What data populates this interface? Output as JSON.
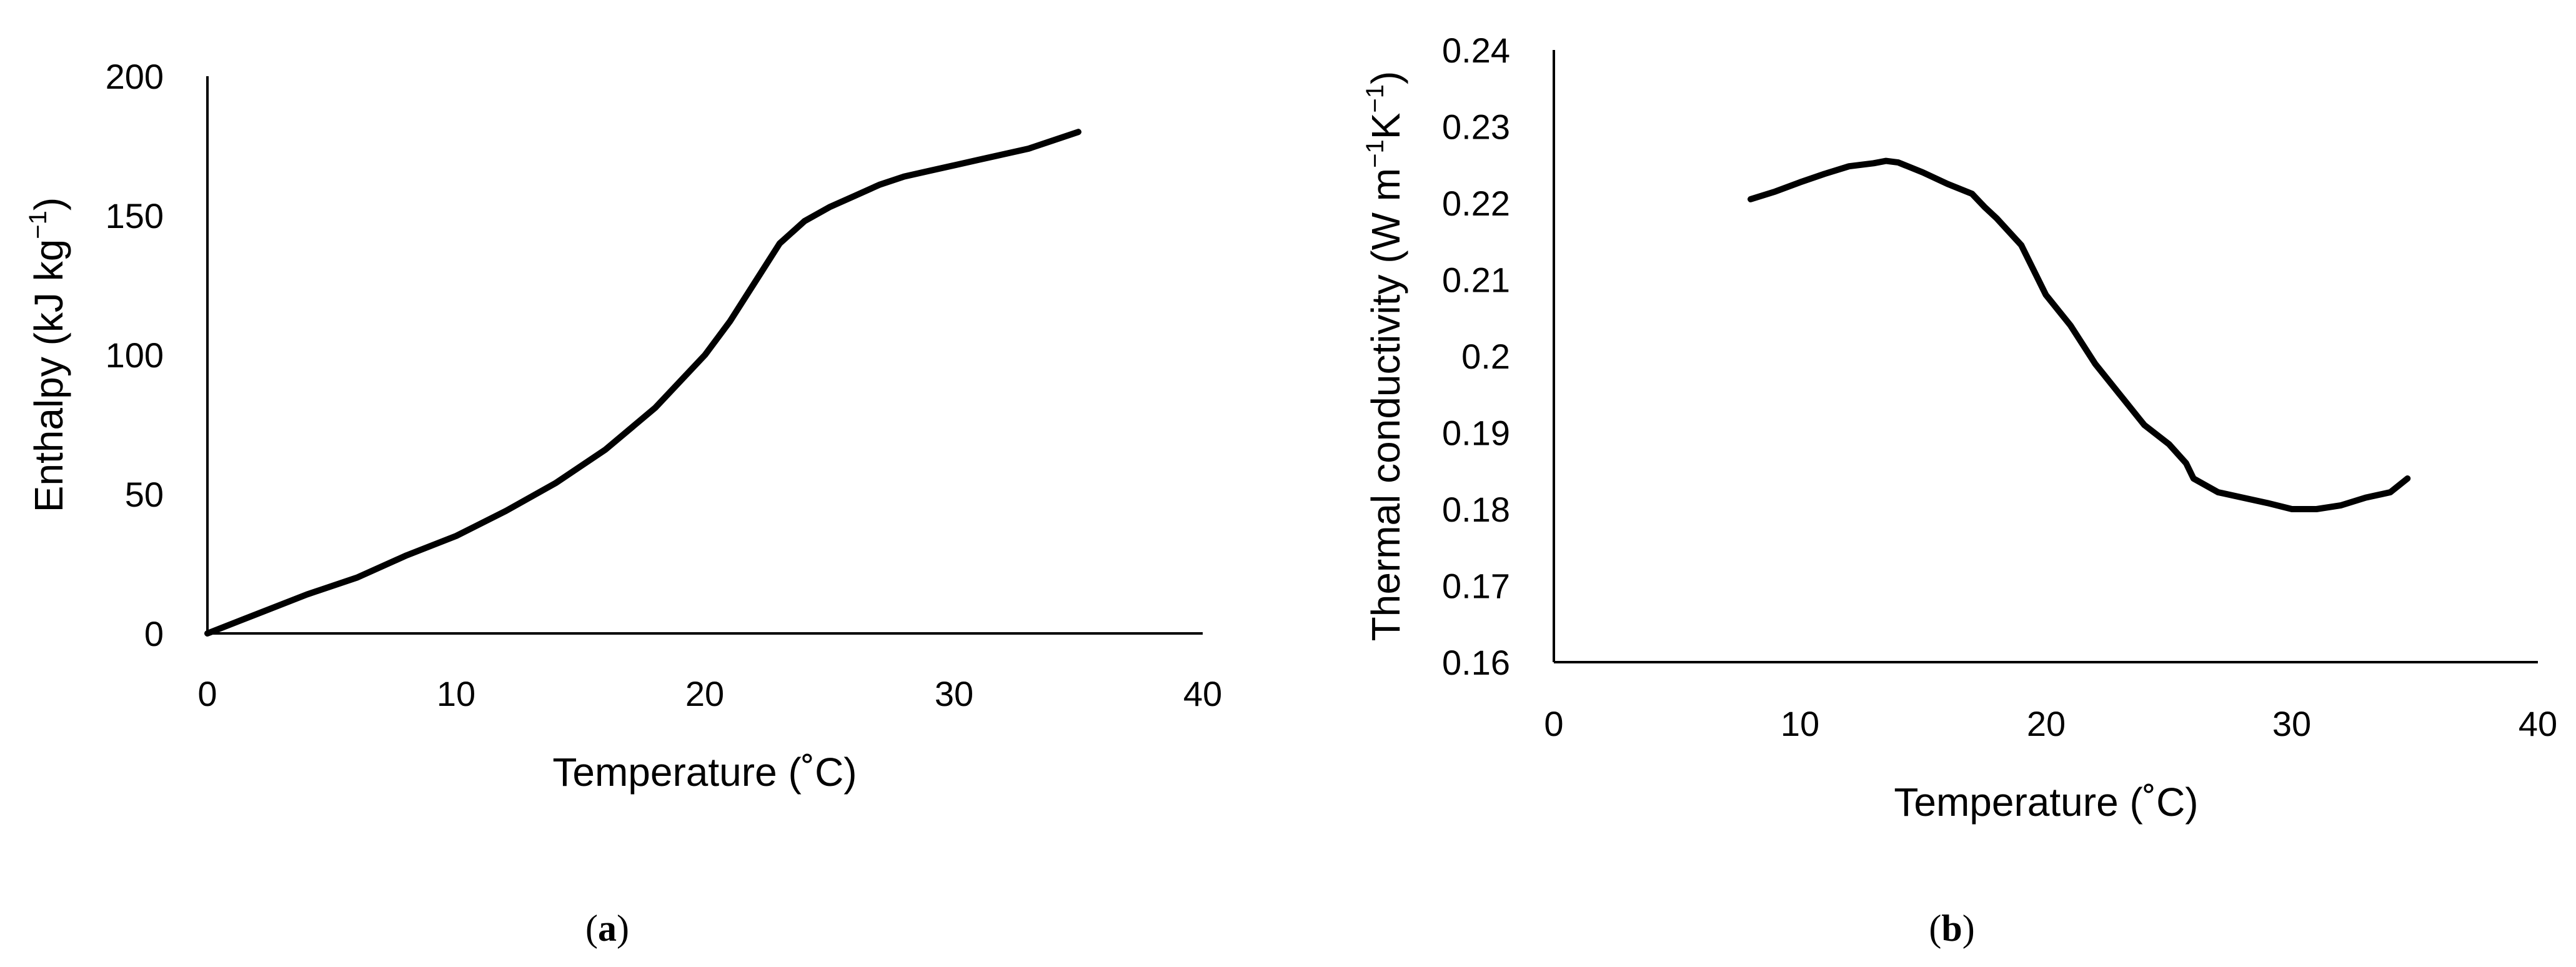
{
  "colors": {
    "line": "#000000",
    "axis": "#000000",
    "background": "#ffffff"
  },
  "chart_data": [
    {
      "type": "line",
      "panel_label": {
        "open": "(",
        "letter": "a",
        "close": ")"
      },
      "title": "",
      "xlabel": "Temperature (˚C)",
      "ylabel": {
        "base": "Enthalpy (kJ kg",
        "sup": "−1",
        "end": ")"
      },
      "xlim": [
        0,
        40
      ],
      "ylim": [
        0,
        200
      ],
      "xticks": [
        "0",
        "10",
        "20",
        "30",
        "40"
      ],
      "yticks": [
        "0",
        "50",
        "100",
        "150",
        "200"
      ],
      "grid": false,
      "legend": "none",
      "series": [
        {
          "x": [
            0,
            2,
            4,
            6,
            8,
            10,
            12,
            14,
            16,
            18,
            20,
            21,
            22,
            23,
            24,
            25,
            26,
            27,
            28,
            29,
            30,
            31,
            32,
            33,
            34,
            35
          ],
          "y": [
            0,
            7,
            14,
            20,
            28,
            35,
            44,
            54,
            66,
            81,
            100,
            112,
            126,
            140,
            148,
            153,
            157,
            161,
            164,
            166,
            168,
            170,
            172,
            174,
            177,
            180
          ]
        }
      ]
    },
    {
      "type": "line",
      "panel_label": {
        "open": "(",
        "letter": "b",
        "close": ")"
      },
      "title": "",
      "xlabel": "Temperature (˚C)",
      "ylabel": {
        "base": "Thermal conductivity (W m",
        "sup1": "−1",
        "mid": "K",
        "sup2": "−1",
        "end": ")"
      },
      "xlim": [
        0,
        40
      ],
      "ylim": [
        0.16,
        0.24
      ],
      "xticks": [
        "0",
        "10",
        "20",
        "30",
        "40"
      ],
      "yticks": [
        "0.16",
        "0.17",
        "0.18",
        "0.19",
        "0.2",
        "0.21",
        "0.22",
        "0.23",
        "0.24"
      ],
      "grid": false,
      "legend": "none",
      "series": [
        {
          "x": [
            8,
            9,
            10,
            11,
            12,
            13,
            13.5,
            14,
            15,
            16,
            17,
            17.5,
            18,
            19,
            20,
            21,
            22,
            23,
            24,
            25,
            25.7,
            26,
            27,
            28,
            29,
            30,
            31,
            32,
            33,
            34,
            34.7
          ],
          "y": [
            0.2205,
            0.2215,
            0.2227,
            0.2238,
            0.2248,
            0.2252,
            0.2255,
            0.2253,
            0.224,
            0.2225,
            0.2212,
            0.2195,
            0.218,
            0.2145,
            0.208,
            0.204,
            0.199,
            0.195,
            0.191,
            0.1885,
            0.186,
            0.184,
            0.1822,
            0.1815,
            0.1808,
            0.18,
            0.18,
            0.1805,
            0.1815,
            0.1822,
            0.184
          ]
        }
      ]
    }
  ]
}
